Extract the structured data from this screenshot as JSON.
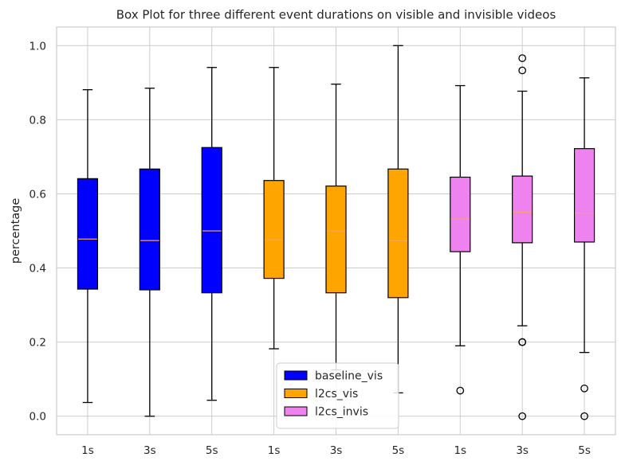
{
  "chart_data": {
    "type": "box",
    "title": "Box Plot for three different event durations on visible and invisible videos",
    "xlabel": "",
    "ylabel": "percentage",
    "ylim": [
      -0.05,
      1.05
    ],
    "yticks": [
      "0.0",
      "0.2",
      "0.4",
      "0.6",
      "0.8",
      "1.0"
    ],
    "grid": true,
    "legend_position": "lower-center",
    "categories": [
      "1s",
      "3s",
      "5s",
      "1s",
      "3s",
      "5s",
      "1s",
      "3s",
      "5s"
    ],
    "series": [
      {
        "name": "baseline_vis",
        "color": "#0000ff",
        "boxes": [
          {
            "label": "1s",
            "whisker_low": 0.037,
            "q1": 0.343,
            "median": 0.478,
            "q3": 0.641,
            "whisker_high": 0.881,
            "outliers": []
          },
          {
            "label": "3s",
            "whisker_low": 0.0,
            "q1": 0.341,
            "median": 0.474,
            "q3": 0.667,
            "whisker_high": 0.885,
            "outliers": []
          },
          {
            "label": "5s",
            "whisker_low": 0.043,
            "q1": 0.333,
            "median": 0.5,
            "q3": 0.725,
            "whisker_high": 0.941,
            "outliers": []
          }
        ]
      },
      {
        "name": "l2cs_vis",
        "color": "#ffa500",
        "boxes": [
          {
            "label": "1s",
            "whisker_low": 0.182,
            "q1": 0.372,
            "median": 0.476,
            "q3": 0.636,
            "whisker_high": 0.941,
            "outliers": []
          },
          {
            "label": "3s",
            "whisker_low": 0.125,
            "q1": 0.333,
            "median": 0.5,
            "q3": 0.621,
            "whisker_high": 0.896,
            "outliers": []
          },
          {
            "label": "5s",
            "whisker_low": 0.063,
            "q1": 0.32,
            "median": 0.474,
            "q3": 0.667,
            "whisker_high": 1.0,
            "outliers": []
          }
        ]
      },
      {
        "name": "l2cs_invis",
        "color": "#ee82ee",
        "boxes": [
          {
            "label": "1s",
            "whisker_low": 0.19,
            "q1": 0.444,
            "median": 0.532,
            "q3": 0.645,
            "whisker_high": 0.892,
            "outliers": [
              0.069
            ]
          },
          {
            "label": "3s",
            "whisker_low": 0.244,
            "q1": 0.468,
            "median": 0.551,
            "q3": 0.648,
            "whisker_high": 0.877,
            "outliers": [
              0.966,
              0.933,
              0.2,
              0.2,
              0.0
            ]
          },
          {
            "label": "5s",
            "whisker_low": 0.172,
            "q1": 0.47,
            "median": 0.548,
            "q3": 0.722,
            "whisker_high": 0.913,
            "outliers": [
              0.075,
              0.0
            ]
          }
        ]
      }
    ],
    "median_color": "#f4a460",
    "grid_color": "#cccccc",
    "frame_color": "#cccccc"
  }
}
